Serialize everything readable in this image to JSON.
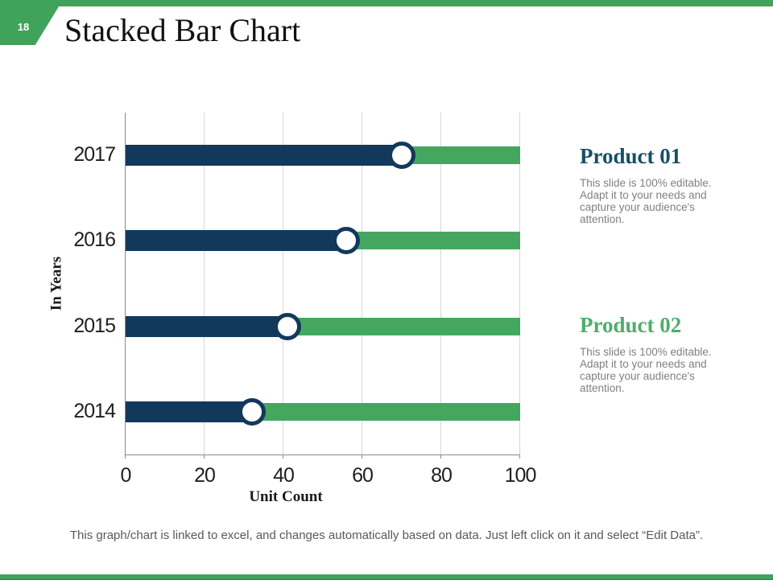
{
  "slide": {
    "page_number": "18",
    "title": "Stacked Bar Chart",
    "footer": "This graph/chart is linked to excel, and changes automatically based on data. Just left click on it and select “Edit Data”."
  },
  "colors": {
    "banner_green": "#3fa35c",
    "bar_green": "#45a75f",
    "bar_navy": "#12395b",
    "axis_gray": "#8a8a8a",
    "gridline_gray": "#d8d8d8",
    "body_text_gray": "#808080",
    "footer_gray": "#595959"
  },
  "chart_data": {
    "type": "bar",
    "orientation": "horizontal",
    "stacked": true,
    "title": "",
    "xlabel": "Unit Count",
    "ylabel": "In Years",
    "categories": [
      "2017",
      "2016",
      "2015",
      "2014"
    ],
    "series": [
      {
        "name": "Product 01",
        "color": "#12395b",
        "values": [
          70,
          56,
          41,
          32
        ]
      },
      {
        "name": "Product 02",
        "color": "#45a75f",
        "values": [
          30,
          44,
          59,
          68
        ]
      }
    ],
    "xlim": [
      0,
      100
    ],
    "xticks": [
      0,
      20,
      40,
      60,
      80,
      100
    ],
    "grid": true,
    "legend_position": "none",
    "marker": {
      "shape": "circle",
      "fill": "#ffffff",
      "ring": "#12395b"
    }
  },
  "products": [
    {
      "heading": "Product 01",
      "color": "#174f66",
      "body": "This slide is 100% editable.\nAdapt it to your needs and\ncapture your audience's\nattention."
    },
    {
      "heading": "Product 02",
      "color": "#4cae6b",
      "body": "This slide is 100% editable.\nAdapt it to your needs and\ncapture your audience's\nattention."
    }
  ]
}
